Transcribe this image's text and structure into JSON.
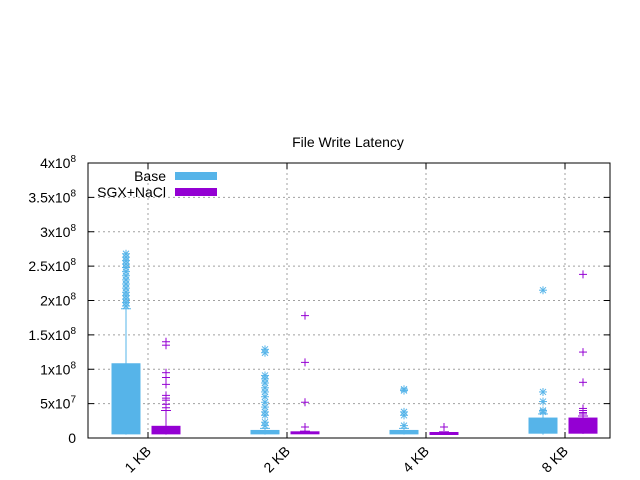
{
  "chart_data": {
    "type": "boxplot",
    "title": "File Write Latency",
    "xlabel": "",
    "ylabel": "",
    "categories": [
      "1 KB",
      "2 KB",
      "4 KB",
      "8 KB"
    ],
    "ylim": [
      0,
      400000000
    ],
    "yticks": [
      {
        "value": 0,
        "label": "0",
        "exp": ""
      },
      {
        "value": 50000000,
        "label": "5x10",
        "exp": "7"
      },
      {
        "value": 100000000,
        "label": "1x10",
        "exp": "8"
      },
      {
        "value": 150000000,
        "label": "1.5x10",
        "exp": "8"
      },
      {
        "value": 200000000,
        "label": "2x10",
        "exp": "8"
      },
      {
        "value": 250000000,
        "label": "2.5x10",
        "exp": "8"
      },
      {
        "value": 300000000,
        "label": "3x10",
        "exp": "8"
      },
      {
        "value": 350000000,
        "label": "3.5x10",
        "exp": "8"
      },
      {
        "value": 400000000,
        "label": "4x10",
        "exp": "8"
      }
    ],
    "grid": true,
    "legend_position": "top-left",
    "series": [
      {
        "name": "Base",
        "color": "#56b4e9",
        "marker": "asterisk",
        "boxes": [
          {
            "category": "1 KB",
            "min": 5000000,
            "q1": 6000000,
            "median": 7000000,
            "q3": 108000000,
            "max": 188000000,
            "outliers": [
              192000000,
              197000000,
              202000000,
              207000000,
              212000000,
              218000000,
              224000000,
              230000000,
              236000000,
              242000000,
              248000000,
              253000000,
              258000000,
              263000000,
              268000000
            ]
          },
          {
            "category": "2 KB",
            "min": 5000000,
            "q1": 6000000,
            "median": 9000000,
            "q3": 11000000,
            "max": 14000000,
            "outliers": [
              18000000,
              23000000,
              33000000,
              38000000,
              45000000,
              52000000,
              60000000,
              67000000,
              73000000,
              80000000,
              86000000,
              91000000,
              124000000,
              129000000
            ]
          },
          {
            "category": "4 KB",
            "min": 5000000,
            "q1": 6000000,
            "median": 9000000,
            "q3": 11000000,
            "max": 14000000,
            "outliers": [
              18000000,
              33000000,
              38000000,
              69000000,
              71000000
            ]
          },
          {
            "category": "8 KB",
            "min": 5000000,
            "q1": 7000000,
            "median": 10000000,
            "q3": 29000000,
            "max": 35000000,
            "outliers": [
              38000000,
              40000000,
              53000000,
              67000000,
              215000000
            ]
          }
        ]
      },
      {
        "name": "SGX+NaCl",
        "color": "#9400d3",
        "marker": "plus",
        "boxes": [
          {
            "category": "1 KB",
            "min": 5000000,
            "q1": 6000000,
            "median": 7000000,
            "q3": 17000000,
            "max": 40000000,
            "outliers": [
              44000000,
              49000000,
              55000000,
              58000000,
              62000000,
              78000000,
              88000000,
              95000000,
              135000000,
              140000000
            ]
          },
          {
            "category": "2 KB",
            "min": 6000000,
            "q1": 6500000,
            "median": 8000000,
            "q3": 9000000,
            "max": 10000000,
            "outliers": [
              16000000,
              52000000,
              110000000,
              178000000
            ]
          },
          {
            "category": "4 KB",
            "min": 5000000,
            "q1": 6000000,
            "median": 7000000,
            "q3": 8000000,
            "max": 9000000,
            "outliers": [
              16000000
            ]
          },
          {
            "category": "8 KB",
            "min": 6000000,
            "q1": 7000000,
            "median": 9000000,
            "q3": 29000000,
            "max": 32000000,
            "outliers": [
              35000000,
              37000000,
              40000000,
              43000000,
              81000000,
              125000000,
              238000000
            ]
          }
        ]
      }
    ]
  }
}
